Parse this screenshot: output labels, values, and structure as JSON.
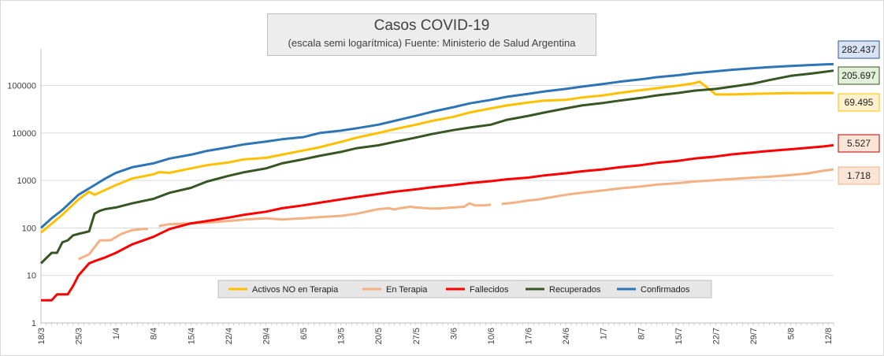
{
  "chart_data": {
    "type": "line",
    "title": "Casos COVID-19",
    "subtitle": "(escala semi logarítmica) Fuente: Ministerio de Salud  Argentina",
    "yscale": "log",
    "ylim": [
      1,
      500000
    ],
    "ytick_labels": [
      "1",
      "10",
      "100",
      "1000",
      "10000",
      "100000"
    ],
    "ytick_values": [
      1,
      10,
      100,
      1000,
      10000,
      100000
    ],
    "x_range": [
      0,
      148
    ],
    "x_tick_labels": [
      "18/3",
      "25/3",
      "1/4",
      "8/4",
      "15/4",
      "22/4",
      "29/4",
      "6/5",
      "13/5",
      "20/5",
      "27/5",
      "3/6",
      "10/6",
      "17/6",
      "24/6",
      "1/7",
      "8/7",
      "15/7",
      "22/7",
      "29/7",
      "5/8",
      "12/8"
    ],
    "x_tick_step": 7,
    "series": [
      {
        "name": "Activos NO en Terapia",
        "color": "#ffc000",
        "x": [
          0,
          4,
          7,
          9,
          10,
          14,
          17,
          21,
          22,
          24,
          28,
          31,
          35,
          38,
          42,
          45,
          49,
          52,
          56,
          59,
          63,
          66,
          70,
          73,
          77,
          80,
          84,
          87,
          91,
          94,
          98,
          101,
          105,
          108,
          112,
          115,
          119,
          122,
          123,
          126,
          129,
          133,
          136,
          140,
          143,
          145,
          146,
          147,
          148
        ],
        "y": [
          80,
          190,
          400,
          580,
          500,
          800,
          1100,
          1350,
          1500,
          1450,
          1800,
          2100,
          2400,
          2800,
          3000,
          3500,
          4300,
          5000,
          6500,
          8000,
          10000,
          12000,
          15000,
          18000,
          22000,
          27000,
          33000,
          38000,
          44000,
          48000,
          50000,
          56000,
          62000,
          70000,
          80000,
          88000,
          100000,
          112000,
          120000,
          65000,
          65000,
          67000,
          68000,
          69000,
          69400,
          69495,
          69495,
          69495,
          69495
        ]
      },
      {
        "name": "En Terapia",
        "color": "#f4b183",
        "x": [
          7,
          9,
          11,
          12,
          13,
          15,
          17,
          19,
          20,
          null,
          22,
          24,
          28,
          31,
          35,
          38,
          42,
          45,
          49,
          52,
          56,
          59,
          63,
          65,
          66,
          67,
          69,
          70,
          73,
          75,
          77,
          79,
          80,
          81,
          83,
          84,
          null,
          86,
          89,
          91,
          93,
          94,
          98,
          101,
          105,
          108,
          112,
          115,
          119,
          122,
          126,
          129,
          133,
          136,
          140,
          143,
          146,
          148
        ],
        "y": [
          22,
          28,
          55,
          55,
          55,
          75,
          90,
          95,
          95,
          null,
          110,
          120,
          125,
          130,
          140,
          150,
          160,
          150,
          160,
          170,
          180,
          200,
          250,
          260,
          245,
          260,
          280,
          270,
          255,
          260,
          270,
          280,
          330,
          300,
          300,
          310,
          null,
          320,
          350,
          380,
          400,
          420,
          500,
          550,
          620,
          680,
          750,
          820,
          880,
          950,
          1020,
          1080,
          1150,
          1200,
          1300,
          1400,
          1600,
          1718
        ]
      },
      {
        "name": "Fallecidos",
        "color": "#ff0000",
        "x": [
          0,
          2,
          3,
          5,
          6,
          7,
          9,
          10,
          12,
          14,
          17,
          21,
          24,
          28,
          31,
          35,
          38,
          42,
          45,
          49,
          52,
          56,
          59,
          63,
          66,
          70,
          73,
          77,
          80,
          84,
          87,
          91,
          94,
          98,
          101,
          105,
          108,
          112,
          115,
          119,
          122,
          126,
          129,
          133,
          136,
          140,
          143,
          146,
          148
        ],
        "y": [
          3,
          3,
          4,
          4,
          6,
          10,
          18,
          20,
          24,
          30,
          45,
          65,
          95,
          125,
          140,
          165,
          190,
          220,
          260,
          300,
          340,
          400,
          450,
          520,
          580,
          650,
          720,
          800,
          880,
          970,
          1060,
          1150,
          1280,
          1420,
          1560,
          1720,
          1900,
          2100,
          2350,
          2600,
          2900,
          3200,
          3550,
          3900,
          4200,
          4550,
          4850,
          5200,
          5527
        ]
      },
      {
        "name": "Recuperados",
        "color": "#375623",
        "x": [
          0,
          2,
          3,
          4,
          5,
          6,
          7,
          9,
          10,
          11,
          12,
          14,
          17,
          21,
          24,
          28,
          31,
          35,
          38,
          42,
          45,
          49,
          52,
          56,
          59,
          63,
          66,
          70,
          73,
          77,
          80,
          84,
          87,
          91,
          94,
          98,
          101,
          105,
          108,
          112,
          115,
          119,
          122,
          126,
          129,
          133,
          136,
          140,
          143,
          144,
          146,
          148
        ],
        "y": [
          18,
          30,
          30,
          50,
          55,
          70,
          75,
          85,
          200,
          230,
          250,
          270,
          330,
          410,
          550,
          700,
          950,
          1250,
          1500,
          1800,
          2300,
          2800,
          3300,
          4000,
          4800,
          5500,
          6500,
          8000,
          9500,
          11500,
          13000,
          15000,
          19000,
          23000,
          27000,
          33000,
          38000,
          43000,
          48000,
          55000,
          62000,
          70000,
          78000,
          85000,
          95000,
          110000,
          130000,
          160000,
          175000,
          180000,
          192000,
          205697
        ]
      },
      {
        "name": "Confirmados",
        "color": "#2e75b6",
        "x": [
          0,
          2,
          4,
          7,
          10,
          12,
          14,
          17,
          21,
          24,
          28,
          31,
          35,
          38,
          42,
          45,
          49,
          52,
          56,
          59,
          63,
          66,
          70,
          73,
          77,
          80,
          84,
          87,
          91,
          94,
          98,
          101,
          105,
          108,
          112,
          115,
          119,
          122,
          126,
          129,
          133,
          136,
          140,
          143,
          146,
          148
        ],
        "y": [
          100,
          160,
          240,
          500,
          800,
          1100,
          1450,
          1900,
          2300,
          2900,
          3500,
          4200,
          5000,
          5800,
          6600,
          7400,
          8200,
          10000,
          11200,
          12600,
          15000,
          18000,
          23000,
          28000,
          35000,
          42000,
          50000,
          58000,
          67000,
          75000,
          85000,
          95000,
          108000,
          120000,
          135000,
          150000,
          165000,
          182000,
          200000,
          215000,
          232000,
          245000,
          258000,
          268000,
          277000,
          282437
        ]
      }
    ],
    "end_labels": [
      {
        "series": "Confirmados",
        "text": "282.437",
        "bg": "#dae3f3",
        "border": "#2f5597"
      },
      {
        "series": "Recuperados",
        "text": "205.697",
        "bg": "#e2f0d9",
        "border": "#375623"
      },
      {
        "series": "Activos NO en Terapia",
        "text": "69.495",
        "bg": "#fff2cc",
        "border": "#ffc000"
      },
      {
        "series": "Fallecidos",
        "text": "5.527",
        "bg": "#fbe5d6",
        "border": "#c00000"
      },
      {
        "series": "En Terapia",
        "text": "1.718",
        "bg": "#fbe5d6",
        "border": "#f4b183"
      }
    ],
    "legend_position": "bottom-center"
  }
}
